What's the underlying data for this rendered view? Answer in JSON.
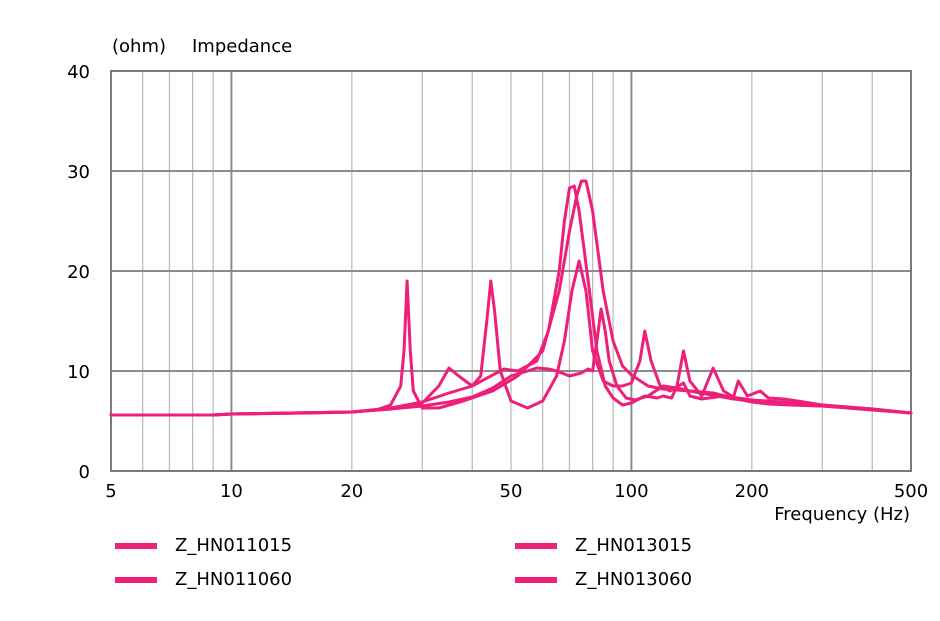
{
  "chart_data": {
    "type": "line",
    "title": "Impedance",
    "ylabel": "(ohm)",
    "xlabel": "Frequency (Hz)",
    "xscale": "log",
    "xlim": [
      5,
      500
    ],
    "ylim": [
      0,
      40
    ],
    "x_ticks": [
      5,
      10,
      20,
      50,
      100,
      200,
      500
    ],
    "y_ticks": [
      0,
      10,
      20,
      30,
      40
    ],
    "grid": true,
    "legend_position": "bottom",
    "line_color": "#ee1f7a",
    "series": [
      {
        "name": "Z_HN011015",
        "points": [
          [
            5,
            5.6
          ],
          [
            9,
            5.6
          ],
          [
            10,
            5.7
          ],
          [
            20,
            5.9
          ],
          [
            23,
            6.1
          ],
          [
            25,
            6.6
          ],
          [
            26.5,
            8.5
          ],
          [
            27,
            12
          ],
          [
            27.5,
            19
          ],
          [
            28,
            12
          ],
          [
            28.5,
            8
          ],
          [
            30,
            6.3
          ],
          [
            33,
            6.3
          ],
          [
            38,
            7
          ],
          [
            45,
            8
          ],
          [
            52,
            9.5
          ],
          [
            60,
            12
          ],
          [
            66,
            18
          ],
          [
            70,
            24
          ],
          [
            73,
            27.5
          ],
          [
            75,
            29
          ],
          [
            77,
            29
          ],
          [
            80,
            26
          ],
          [
            85,
            18
          ],
          [
            90,
            13
          ],
          [
            95,
            10.5
          ],
          [
            100,
            9.6
          ],
          [
            110,
            8.5
          ],
          [
            120,
            8.2
          ],
          [
            140,
            8
          ],
          [
            180,
            7.2
          ],
          [
            220,
            6.8
          ],
          [
            260,
            6.6
          ],
          [
            300,
            6.5
          ],
          [
            400,
            6.1
          ],
          [
            500,
            5.8
          ]
        ]
      },
      {
        "name": "Z_HN011060",
        "points": [
          [
            5,
            5.6
          ],
          [
            9,
            5.6
          ],
          [
            10,
            5.7
          ],
          [
            20,
            5.9
          ],
          [
            25,
            6.2
          ],
          [
            30,
            6.8
          ],
          [
            33,
            8.5
          ],
          [
            35,
            10.3
          ],
          [
            37,
            9.5
          ],
          [
            40,
            8.5
          ],
          [
            42,
            9.5
          ],
          [
            43.5,
            15
          ],
          [
            44.5,
            19
          ],
          [
            45.5,
            16
          ],
          [
            47,
            10
          ],
          [
            50,
            7
          ],
          [
            55,
            6.3
          ],
          [
            60,
            7
          ],
          [
            65,
            9.5
          ],
          [
            68,
            13
          ],
          [
            71,
            18
          ],
          [
            74,
            21
          ],
          [
            77,
            18
          ],
          [
            80,
            12
          ],
          [
            85,
            9
          ],
          [
            90,
            8.5
          ],
          [
            95,
            8.5
          ],
          [
            100,
            8.8
          ],
          [
            105,
            11
          ],
          [
            108,
            14
          ],
          [
            112,
            11
          ],
          [
            118,
            8.5
          ],
          [
            125,
            8
          ],
          [
            135,
            8.8
          ],
          [
            140,
            7.5
          ],
          [
            150,
            7.2
          ],
          [
            170,
            7.5
          ],
          [
            200,
            7.1
          ],
          [
            240,
            6.9
          ],
          [
            300,
            6.6
          ],
          [
            400,
            6.2
          ],
          [
            500,
            5.8
          ]
        ]
      },
      {
        "name": "Z_HN013015",
        "points": [
          [
            5,
            5.6
          ],
          [
            9,
            5.6
          ],
          [
            10,
            5.7
          ],
          [
            16,
            5.8
          ],
          [
            20,
            5.9
          ],
          [
            25,
            6.3
          ],
          [
            30,
            6.9
          ],
          [
            35,
            7.8
          ],
          [
            40,
            8.5
          ],
          [
            45,
            9.6
          ],
          [
            48,
            10.2
          ],
          [
            52,
            10
          ],
          [
            58,
            11
          ],
          [
            62,
            14
          ],
          [
            66,
            20
          ],
          [
            68,
            25
          ],
          [
            70,
            28.3
          ],
          [
            72,
            28.5
          ],
          [
            74,
            26
          ],
          [
            78,
            19
          ],
          [
            82,
            12
          ],
          [
            86,
            8.5
          ],
          [
            90,
            7.3
          ],
          [
            95,
            6.6
          ],
          [
            100,
            6.8
          ],
          [
            108,
            7.5
          ],
          [
            116,
            7.3
          ],
          [
            120,
            7.5
          ],
          [
            126,
            7.3
          ],
          [
            130,
            8.5
          ],
          [
            135,
            12
          ],
          [
            140,
            9
          ],
          [
            150,
            7.5
          ],
          [
            160,
            10.3
          ],
          [
            170,
            8
          ],
          [
            180,
            7.4
          ],
          [
            185,
            9
          ],
          [
            195,
            7.5
          ],
          [
            210,
            8
          ],
          [
            220,
            7.3
          ],
          [
            240,
            7.2
          ],
          [
            260,
            7
          ],
          [
            300,
            6.6
          ],
          [
            400,
            6.2
          ],
          [
            500,
            5.8
          ]
        ]
      },
      {
        "name": "Z_HN013060",
        "points": [
          [
            5,
            5.6
          ],
          [
            9,
            5.6
          ],
          [
            10,
            5.7
          ],
          [
            20,
            5.9
          ],
          [
            25,
            6.2
          ],
          [
            30,
            6.5
          ],
          [
            35,
            6.9
          ],
          [
            40,
            7.4
          ],
          [
            45,
            8.3
          ],
          [
            50,
            9.5
          ],
          [
            55,
            10
          ],
          [
            58,
            10.3
          ],
          [
            62,
            10.2
          ],
          [
            65,
            10
          ],
          [
            70,
            9.5
          ],
          [
            75,
            9.8
          ],
          [
            78,
            10.2
          ],
          [
            80,
            10
          ],
          [
            82,
            13
          ],
          [
            84,
            16.2
          ],
          [
            86,
            14
          ],
          [
            88,
            11
          ],
          [
            92,
            8.5
          ],
          [
            97,
            7.3
          ],
          [
            102,
            7.1
          ],
          [
            110,
            7.5
          ],
          [
            120,
            8.5
          ],
          [
            130,
            8.3
          ],
          [
            140,
            8
          ],
          [
            160,
            7.8
          ],
          [
            180,
            7.3
          ],
          [
            200,
            6.9
          ],
          [
            220,
            6.7
          ],
          [
            250,
            6.6
          ],
          [
            300,
            6.5
          ],
          [
            400,
            6.2
          ],
          [
            500,
            5.8
          ]
        ]
      }
    ]
  }
}
